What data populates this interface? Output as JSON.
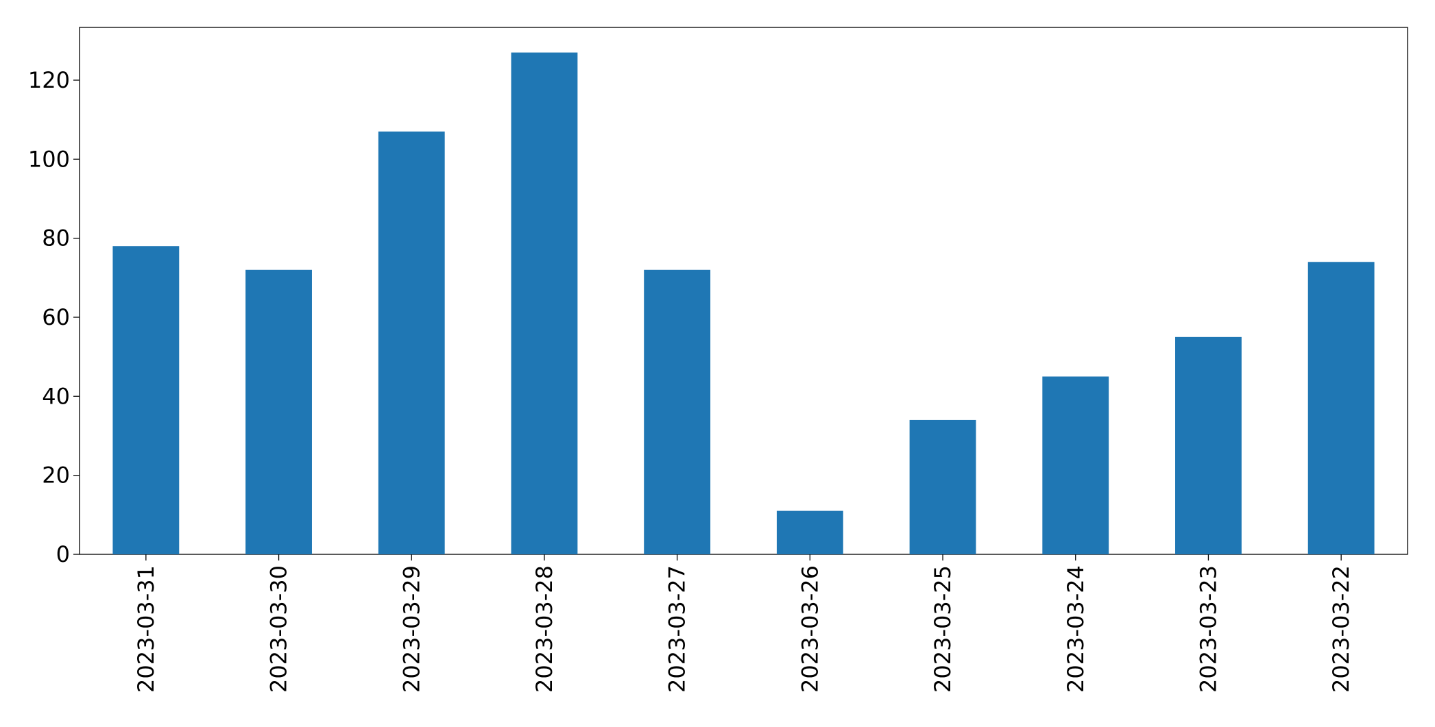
{
  "chart_data": {
    "type": "bar",
    "categories": [
      "2023-03-31",
      "2023-03-30",
      "2023-03-29",
      "2023-03-28",
      "2023-03-27",
      "2023-03-26",
      "2023-03-25",
      "2023-03-24",
      "2023-03-23",
      "2023-03-22"
    ],
    "values": [
      78,
      72,
      107,
      127,
      72,
      11,
      34,
      45,
      55,
      74
    ],
    "color": "#1f77b4",
    "ylim": [
      0,
      133.35
    ],
    "yticks": [
      0,
      20,
      40,
      60,
      80,
      100,
      120
    ],
    "grid": false
  }
}
